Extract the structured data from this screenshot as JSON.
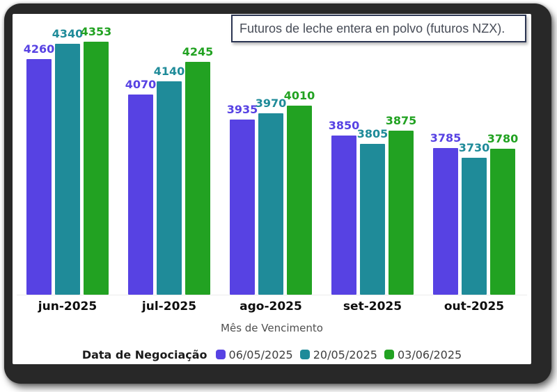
{
  "title_box": {
    "text": "Futuros de leche entera en polvo (futuros NZX)."
  },
  "chart_data": {
    "type": "bar",
    "categories": [
      "jun-2025",
      "jul-2025",
      "ago-2025",
      "set-2025",
      "out-2025"
    ],
    "series": [
      {
        "name": "06/05/2025",
        "color": "#5742e3",
        "values": [
          4260,
          4070,
          3935,
          3850,
          3785
        ]
      },
      {
        "name": "20/05/2025",
        "color": "#1f8b99",
        "values": [
          4340,
          4140,
          3970,
          3805,
          3730
        ]
      },
      {
        "name": "03/06/2025",
        "color": "#22a222",
        "values": [
          4353,
          4245,
          4010,
          3875,
          3780
        ]
      }
    ],
    "xlabel": "Mês de Vencimento",
    "ylabel": "",
    "ylim": [
      3000,
      4500
    ],
    "grid": false,
    "bar_value_labels": true,
    "legend_title": "Data de Negociação",
    "legend_position": "bottom"
  }
}
